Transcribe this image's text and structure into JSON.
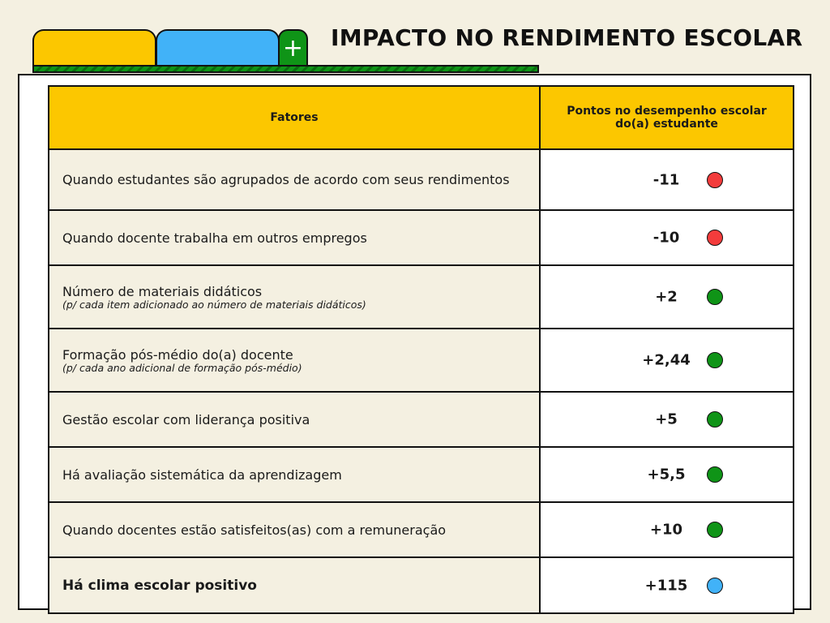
{
  "header": {
    "title": "IMPACTO NO RENDIMENTO ESCOLAR",
    "plus_label": "+"
  },
  "table": {
    "columns": [
      "Fatores",
      "Pontos no desempenho escolar do(a) estudante"
    ],
    "rows": [
      {
        "factor": "Quando estudantes são agrupados de acordo com seus rendimentos",
        "note": "",
        "points": "-11",
        "indicator": "red",
        "color": "#f33c3c"
      },
      {
        "factor": "Quando docente trabalha em outros empregos",
        "note": "",
        "points": "-10",
        "indicator": "red",
        "color": "#f33c3c"
      },
      {
        "factor": "Número de materiais didáticos",
        "note": "(p/ cada item adicionado ao número de materiais didáticos)",
        "points": "+2",
        "indicator": "green",
        "color": "#0f9417"
      },
      {
        "factor": "Formação pós-médio  do(a) docente",
        "note": "(p/ cada ano adicional de formação pós-médio)",
        "points": "+2,44",
        "indicator": "green",
        "color": "#0f9417"
      },
      {
        "factor": "Gestão escolar com  liderança positiva",
        "note": "",
        "points": "+5",
        "indicator": "green",
        "color": "#0f9417"
      },
      {
        "factor": "Há avaliação sistemática da aprendizagem",
        "note": "",
        "points": "+5,5",
        "indicator": "green",
        "color": "#0f9417"
      },
      {
        "factor": "Quando docentes estão satisfeitos(as) com a remuneração",
        "note": "",
        "points": "+10",
        "indicator": "green",
        "color": "#0f9417"
      },
      {
        "factor": "Há clima escolar positivo",
        "note": "",
        "points": "+115",
        "indicator": "blue",
        "color": "#41b2f8",
        "bold": true
      }
    ]
  },
  "colors": {
    "yellow": "#fcc700",
    "blue": "#41b2f8",
    "green": "#0f9417",
    "red": "#f33c3c",
    "background": "#f4f0e1"
  }
}
